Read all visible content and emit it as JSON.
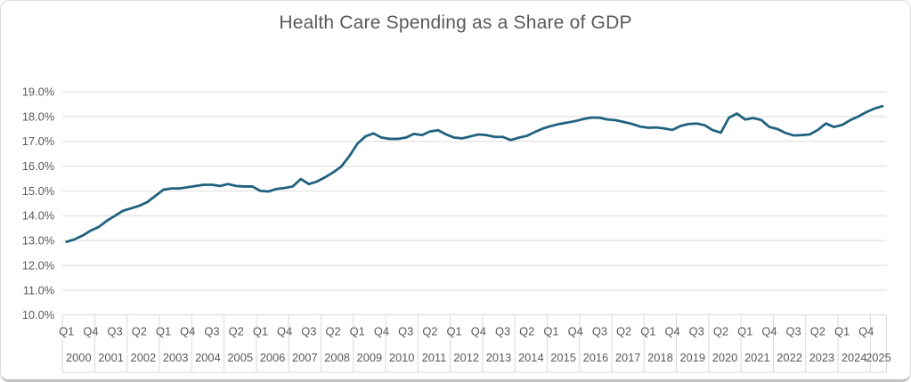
{
  "chart_data": {
    "type": "line",
    "title": "Health Care Spending as a Share of GDP",
    "series_name": "Health care spending as a share of GDP",
    "unit": "% of GDP",
    "legend": "none",
    "gridlines": "horizontal",
    "y_axis": {
      "tick_labels": [
        "19.0%",
        "18.0%",
        "17.0%",
        "16.0%",
        "15.0%",
        "14.0%",
        "13.0%",
        "12.0%",
        "11.0%",
        "10.0%"
      ],
      "tick_values": [
        19.0,
        18.0,
        17.0,
        16.0,
        15.0,
        14.0,
        13.0,
        12.0,
        11.0,
        10.0
      ],
      "min": 10.0,
      "max": 19.0
    },
    "x_axis": {
      "start": "Q1 2000",
      "end": "Q2 2025",
      "total_slots": 102,
      "quarter_label_interval": 3,
      "quarter_labels": [
        "Q1",
        "Q4",
        "Q3",
        "Q2",
        "Q1",
        "Q4",
        "Q3",
        "Q2",
        "Q1",
        "Q4",
        "Q3",
        "Q2",
        "Q1",
        "Q4",
        "Q3",
        "Q2",
        "Q1",
        "Q4",
        "Q3",
        "Q2",
        "Q1",
        "Q4",
        "Q3",
        "Q2",
        "Q1",
        "Q4",
        "Q3",
        "Q2",
        "Q1",
        "Q4",
        "Q3",
        "Q2",
        "Q1",
        "Q4"
      ],
      "year_labels": [
        "2000",
        "2001",
        "2002",
        "2003",
        "2004",
        "2005",
        "2006",
        "2007",
        "2008",
        "2009",
        "2010",
        "2011",
        "2012",
        "2013",
        "2014",
        "2015",
        "2016",
        "2017",
        "2018",
        "2019",
        "2020",
        "2021",
        "2022",
        "2023",
        "2024",
        "2025"
      ]
    },
    "values_pct": [
      12.95,
      13.05,
      13.2,
      13.4,
      13.55,
      13.8,
      14.0,
      14.2,
      14.3,
      14.4,
      14.55,
      14.8,
      15.05,
      15.1,
      15.1,
      15.15,
      15.2,
      15.25,
      15.25,
      15.2,
      15.28,
      15.2,
      15.18,
      15.18,
      15.0,
      14.98,
      15.08,
      15.12,
      15.18,
      15.48,
      15.28,
      15.38,
      15.55,
      15.75,
      15.98,
      16.4,
      16.9,
      17.2,
      17.32,
      17.15,
      17.1,
      17.1,
      17.15,
      17.3,
      17.25,
      17.4,
      17.45,
      17.28,
      17.15,
      17.12,
      17.2,
      17.28,
      17.25,
      17.18,
      17.18,
      17.05,
      17.15,
      17.22,
      17.38,
      17.52,
      17.62,
      17.7,
      17.76,
      17.82,
      17.9,
      17.96,
      17.95,
      17.88,
      17.85,
      17.78,
      17.7,
      17.6,
      17.55,
      17.56,
      17.52,
      17.46,
      17.62,
      17.7,
      17.72,
      17.65,
      17.45,
      17.35,
      17.95,
      18.12,
      17.88,
      17.94,
      17.86,
      17.58,
      17.5,
      17.34,
      17.24,
      17.25,
      17.28,
      17.46,
      17.72,
      17.58,
      17.66,
      17.85,
      18.0,
      18.18,
      18.32,
      18.42
    ],
    "colors": {
      "line": "#20617f",
      "gridline": "#d9d9d9",
      "axis_text": "#595959",
      "title_text": "#595959"
    }
  }
}
